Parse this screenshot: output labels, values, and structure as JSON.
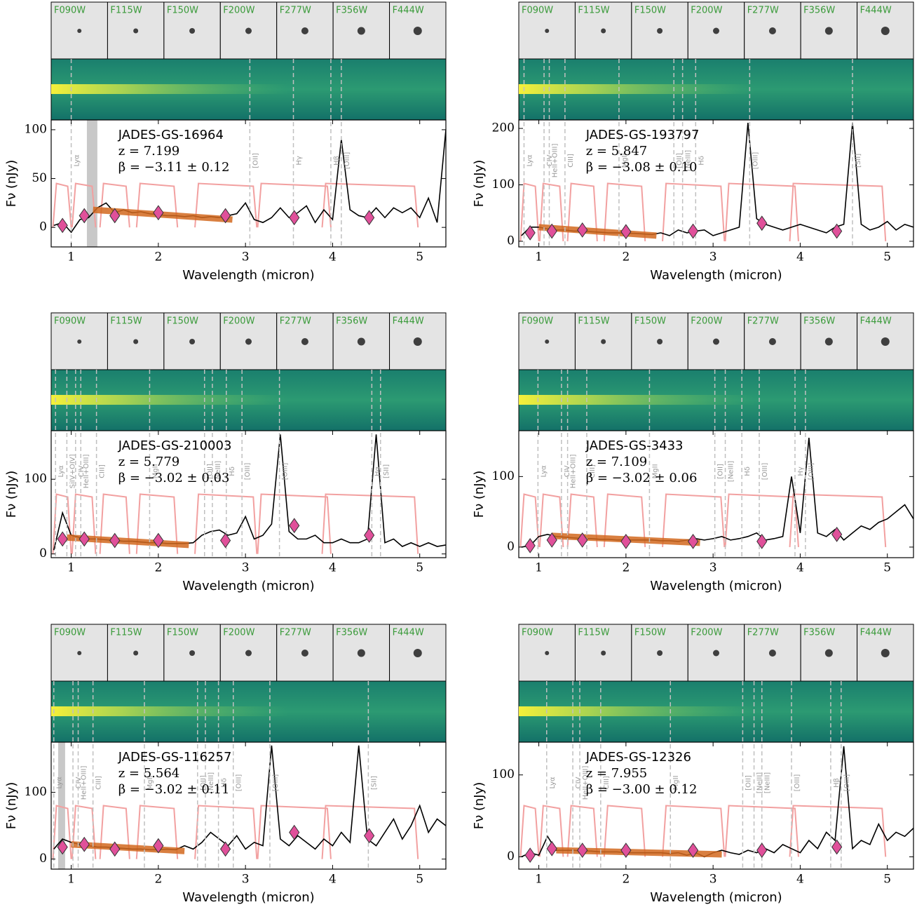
{
  "filters": [
    {
      "name": "F090W",
      "range": [
        0.79,
        1.0
      ]
    },
    {
      "name": "F115W",
      "range": [
        1.01,
        1.28
      ]
    },
    {
      "name": "F150W",
      "range": [
        1.33,
        1.67
      ]
    },
    {
      "name": "F200W",
      "range": [
        1.75,
        2.22
      ]
    },
    {
      "name": "F277W",
      "range": [
        2.42,
        3.13
      ]
    },
    {
      "name": "F356W",
      "range": [
        3.14,
        3.98
      ]
    },
    {
      "name": "F444W",
      "range": [
        3.88,
        4.98
      ]
    }
  ],
  "chart_data": [
    {
      "type": "line",
      "title": "JADES-GS-16964",
      "redshift": "z = 7.199",
      "beta": "β = −3.11 ± 0.12",
      "xlabel": "Wavelength (micron)",
      "ylabel": "Fν (nJy)",
      "color": "#000000",
      "xlim": [
        0.77,
        5.3
      ],
      "ylim": [
        -20,
        110
      ],
      "xticks": [
        1,
        2,
        3,
        4,
        5
      ],
      "yticks": [
        0,
        50,
        100
      ],
      "x": [
        0.8,
        0.9,
        1.0,
        1.1,
        1.2,
        1.3,
        1.4,
        1.5,
        1.6,
        1.7,
        1.8,
        1.9,
        2.0,
        2.1,
        2.2,
        2.3,
        2.4,
        2.5,
        2.6,
        2.7,
        2.8,
        2.9,
        3.0,
        3.1,
        3.2,
        3.3,
        3.4,
        3.5,
        3.6,
        3.7,
        3.8,
        3.9,
        4.0,
        4.1,
        4.2,
        4.3,
        4.4,
        4.5,
        4.6,
        4.7,
        4.8,
        4.9,
        5.0,
        5.1,
        5.2,
        5.3
      ],
      "values": [
        2,
        5,
        -5,
        8,
        10,
        20,
        25,
        15,
        18,
        15,
        16,
        14,
        13,
        12,
        12,
        11,
        12,
        10,
        11,
        10,
        12,
        14,
        25,
        8,
        5,
        10,
        20,
        10,
        15,
        22,
        5,
        18,
        8,
        90,
        18,
        12,
        10,
        20,
        10,
        20,
        15,
        20,
        10,
        30,
        5,
        100
      ],
      "photometry": {
        "color": "#e0509a",
        "x": [
          0.9,
          1.15,
          1.5,
          2.0,
          2.77,
          3.56,
          4.42
        ],
        "values": [
          2,
          12,
          12,
          15,
          12,
          10,
          10
        ]
      },
      "uv_fit": {
        "color": "#d2691e",
        "x": [
          1.25,
          2.85
        ],
        "values": [
          18,
          8
        ]
      },
      "masked": [
        1.18,
        1.3
      ],
      "lines": [
        {
          "label": "Lyα",
          "x": 1.0
        },
        {
          "label": "[OII]",
          "x": 3.05
        },
        {
          "label": "Hγ",
          "x": 3.55
        },
        {
          "label": "Hβ",
          "x": 3.98
        },
        {
          "label": "[OIII]",
          "x": 4.1
        }
      ]
    },
    {
      "type": "line",
      "title": "JADES-GS-193797",
      "redshift": "z = 5.847",
      "beta": "β = −3.08 ± 0.10",
      "xlabel": "Wavelength (micron)",
      "ylabel": "Fν (nJy)",
      "color": "#000000",
      "xlim": [
        0.77,
        5.3
      ],
      "ylim": [
        -10,
        215
      ],
      "xticks": [
        1,
        2,
        3,
        4,
        5
      ],
      "yticks": [
        0,
        100,
        200
      ],
      "x": [
        0.8,
        0.9,
        1.0,
        1.1,
        1.2,
        1.3,
        1.4,
        1.5,
        1.6,
        1.7,
        1.8,
        1.9,
        2.0,
        2.1,
        2.2,
        2.3,
        2.4,
        2.5,
        2.6,
        2.7,
        2.8,
        2.9,
        3.0,
        3.1,
        3.2,
        3.3,
        3.4,
        3.5,
        3.6,
        3.7,
        3.8,
        3.9,
        4.0,
        4.1,
        4.2,
        4.3,
        4.4,
        4.5,
        4.6,
        4.7,
        4.8,
        4.9,
        5.0,
        5.1,
        5.2,
        5.3
      ],
      "values": [
        10,
        25,
        25,
        22,
        20,
        20,
        18,
        18,
        17,
        16,
        15,
        15,
        14,
        14,
        13,
        12,
        15,
        10,
        20,
        15,
        18,
        20,
        10,
        15,
        20,
        25,
        210,
        40,
        30,
        25,
        20,
        25,
        30,
        25,
        20,
        15,
        25,
        30,
        210,
        30,
        20,
        25,
        35,
        20,
        30,
        25
      ],
      "photometry": {
        "color": "#e0509a",
        "x": [
          0.9,
          1.15,
          1.5,
          2.0,
          2.77,
          3.56,
          4.42
        ],
        "values": [
          15,
          18,
          20,
          17,
          18,
          32,
          18
        ]
      },
      "uv_fit": {
        "color": "#d2691e",
        "x": [
          1.0,
          2.35
        ],
        "values": [
          25,
          10
        ]
      },
      "lines": [
        {
          "label": "Lyα",
          "x": 0.83
        },
        {
          "label": "CIV",
          "x": 1.06
        },
        {
          "label": "HeII+OIII]",
          "x": 1.12
        },
        {
          "label": "CIII]",
          "x": 1.3
        },
        {
          "label": "MgII",
          "x": 1.92
        },
        {
          "label": "[OII]",
          "x": 2.55
        },
        {
          "label": "[NeIII]",
          "x": 2.65
        },
        {
          "label": "Hδ",
          "x": 2.8
        },
        {
          "label": "[OIII]",
          "x": 3.42
        },
        {
          "label": "[SII]",
          "x": 4.6
        }
      ]
    },
    {
      "type": "line",
      "title": "JADES-GS-210003",
      "redshift": "z = 5.779",
      "beta": "β = −3.02 ± 0.03",
      "xlabel": "Wavelength (micron)",
      "ylabel": "Fν (nJy)",
      "color": "#000000",
      "xlim": [
        0.77,
        5.3
      ],
      "ylim": [
        -5,
        165
      ],
      "xticks": [
        1,
        2,
        3,
        4,
        5
      ],
      "yticks": [
        0,
        100
      ],
      "x": [
        0.8,
        0.9,
        1.0,
        1.1,
        1.2,
        1.3,
        1.4,
        1.5,
        1.6,
        1.7,
        1.8,
        1.9,
        2.0,
        2.1,
        2.2,
        2.3,
        2.4,
        2.5,
        2.6,
        2.7,
        2.8,
        2.9,
        3.0,
        3.1,
        3.2,
        3.3,
        3.4,
        3.5,
        3.6,
        3.7,
        3.8,
        3.9,
        4.0,
        4.1,
        4.2,
        4.3,
        4.4,
        4.5,
        4.6,
        4.7,
        4.8,
        4.9,
        5.0,
        5.1,
        5.2,
        5.3
      ],
      "values": [
        5,
        55,
        25,
        22,
        20,
        20,
        19,
        18,
        17,
        17,
        16,
        15,
        15,
        14,
        14,
        14,
        15,
        25,
        30,
        32,
        25,
        28,
        50,
        20,
        25,
        40,
        160,
        30,
        20,
        20,
        25,
        15,
        15,
        20,
        15,
        15,
        20,
        160,
        15,
        20,
        10,
        15,
        10,
        15,
        10,
        12
      ],
      "photometry": {
        "color": "#e0509a",
        "x": [
          0.9,
          1.15,
          1.5,
          2.0,
          2.77,
          3.56,
          4.42
        ],
        "values": [
          20,
          20,
          18,
          18,
          18,
          38,
          25
        ]
      },
      "uv_fit": {
        "color": "#d2691e",
        "x": [
          0.95,
          2.35
        ],
        "values": [
          22,
          12
        ]
      },
      "lines": [
        {
          "label": "Lyα",
          "x": 0.82
        },
        {
          "label": "SiIV+OIV]",
          "x": 0.95
        },
        {
          "label": "CIV",
          "x": 1.05
        },
        {
          "label": "HeII+OIII]",
          "x": 1.11
        },
        {
          "label": "CIII]",
          "x": 1.29
        },
        {
          "label": "MgII",
          "x": 1.9
        },
        {
          "label": "[OII]",
          "x": 2.53
        },
        {
          "label": "[NeIII]",
          "x": 2.62
        },
        {
          "label": "Hδ",
          "x": 2.78
        },
        {
          "label": "[OIII]",
          "x": 2.96
        },
        {
          "label": "[OIII]",
          "x": 3.39
        },
        {
          "label": "Hα",
          "x": 4.45
        },
        {
          "label": "[SII]",
          "x": 4.55
        }
      ]
    },
    {
      "type": "line",
      "title": "JADES-GS-3433",
      "redshift": "z = 7.109",
      "beta": "β = −3.02 ± 0.06",
      "xlabel": "Wavelength (micron)",
      "ylabel": "Fν (nJy)",
      "color": "#000000",
      "xlim": [
        0.77,
        5.3
      ],
      "ylim": [
        -15,
        165
      ],
      "xticks": [
        1,
        2,
        3,
        4,
        5
      ],
      "yticks": [
        0,
        100
      ],
      "x": [
        0.8,
        0.9,
        1.0,
        1.1,
        1.2,
        1.3,
        1.4,
        1.5,
        1.6,
        1.7,
        1.8,
        1.9,
        2.0,
        2.1,
        2.2,
        2.3,
        2.4,
        2.5,
        2.6,
        2.7,
        2.8,
        2.9,
        3.0,
        3.1,
        3.2,
        3.3,
        3.4,
        3.5,
        3.6,
        3.7,
        3.8,
        3.9,
        4.0,
        4.1,
        4.2,
        4.3,
        4.4,
        4.5,
        4.6,
        4.7,
        4.8,
        4.9,
        5.0,
        5.1,
        5.2,
        5.3
      ],
      "values": [
        0,
        2,
        15,
        18,
        15,
        14,
        13,
        12,
        12,
        11,
        11,
        10,
        10,
        10,
        10,
        10,
        9,
        9,
        8,
        10,
        12,
        10,
        12,
        15,
        10,
        12,
        15,
        20,
        10,
        12,
        15,
        100,
        20,
        155,
        20,
        15,
        25,
        10,
        20,
        30,
        25,
        35,
        40,
        50,
        60,
        40
      ],
      "photometry": {
        "color": "#e0509a",
        "x": [
          0.9,
          1.15,
          1.5,
          2.0,
          2.77,
          3.56,
          4.42
        ],
        "values": [
          2,
          10,
          10,
          8,
          8,
          8,
          18
        ]
      },
      "uv_fit": {
        "color": "#d2691e",
        "x": [
          1.15,
          2.85
        ],
        "values": [
          16,
          6
        ]
      },
      "lines": [
        {
          "label": "Lyα",
          "x": 0.99
        },
        {
          "label": "CIV",
          "x": 1.26
        },
        {
          "label": "HeII+OIII]",
          "x": 1.33
        },
        {
          "label": "CIII]",
          "x": 1.55
        },
        {
          "label": "MgII",
          "x": 2.27
        },
        {
          "label": "[OII]",
          "x": 3.02
        },
        {
          "label": "[NeIII]",
          "x": 3.14
        },
        {
          "label": "Hδ",
          "x": 3.33
        },
        {
          "label": "[OIII]",
          "x": 3.53
        },
        {
          "label": "Hγ",
          "x": 3.94
        },
        {
          "label": "[OIII]",
          "x": 4.06
        }
      ]
    },
    {
      "type": "line",
      "title": "JADES-GS-116257",
      "redshift": "z = 5.564",
      "beta": "β = −3.02 ± 0.11",
      "xlabel": "Wavelength (micron)",
      "ylabel": "Fν (nJy)",
      "color": "#000000",
      "xlim": [
        0.77,
        5.3
      ],
      "ylim": [
        -15,
        175
      ],
      "xticks": [
        1,
        2,
        3,
        4,
        5
      ],
      "yticks": [
        0,
        100
      ],
      "x": [
        0.8,
        0.9,
        1.0,
        1.1,
        1.2,
        1.3,
        1.4,
        1.5,
        1.6,
        1.7,
        1.8,
        1.9,
        2.0,
        2.1,
        2.2,
        2.3,
        2.4,
        2.5,
        2.6,
        2.7,
        2.8,
        2.9,
        3.0,
        3.1,
        3.2,
        3.3,
        3.4,
        3.5,
        3.6,
        3.7,
        3.8,
        3.9,
        4.0,
        4.1,
        4.2,
        4.3,
        4.4,
        4.5,
        4.6,
        4.7,
        4.8,
        4.9,
        5.0,
        5.1,
        5.2,
        5.3
      ],
      "values": [
        15,
        30,
        25,
        22,
        20,
        18,
        18,
        17,
        16,
        15,
        15,
        14,
        14,
        15,
        14,
        20,
        15,
        25,
        40,
        30,
        20,
        35,
        15,
        25,
        20,
        170,
        30,
        20,
        35,
        25,
        15,
        30,
        20,
        40,
        25,
        170,
        30,
        20,
        40,
        60,
        30,
        50,
        80,
        40,
        60,
        50
      ],
      "photometry": {
        "color": "#e0509a",
        "x": [
          0.9,
          1.15,
          1.5,
          2.0,
          2.77,
          3.56,
          4.42
        ],
        "values": [
          18,
          22,
          15,
          20,
          15,
          40,
          35
        ]
      },
      "uv_fit": {
        "color": "#d2691e",
        "x": [
          1.0,
          2.3
        ],
        "values": [
          22,
          12
        ]
      },
      "masked": [
        0.85,
        0.93
      ],
      "lines": [
        {
          "label": "Lyα",
          "x": 0.8
        },
        {
          "label": "CIV",
          "x": 1.02
        },
        {
          "label": "HeII+OIII]",
          "x": 1.08
        },
        {
          "label": "CIII]",
          "x": 1.25
        },
        {
          "label": "MgII",
          "x": 1.84
        },
        {
          "label": "[OII]",
          "x": 2.45
        },
        {
          "label": "[NeIII]",
          "x": 2.54
        },
        {
          "label": "Hδ",
          "x": 2.69
        },
        {
          "label": "[OIII]",
          "x": 2.86
        },
        {
          "label": "[OIII]",
          "x": 3.28
        },
        {
          "label": "[SII]",
          "x": 4.41
        }
      ]
    },
    {
      "type": "line",
      "title": "JADES-GS-12326",
      "redshift": "z = 7.955",
      "beta": "β = −3.00 ± 0.12",
      "xlabel": "Wavelength (micron)",
      "ylabel": "Fν (nJy)",
      "color": "#000000",
      "xlim": [
        0.77,
        5.3
      ],
      "ylim": [
        -15,
        140
      ],
      "xticks": [
        1,
        2,
        3,
        4,
        5
      ],
      "yticks": [
        0,
        100
      ],
      "x": [
        0.8,
        0.9,
        1.0,
        1.1,
        1.2,
        1.3,
        1.4,
        1.5,
        1.6,
        1.7,
        1.8,
        1.9,
        2.0,
        2.1,
        2.2,
        2.3,
        2.4,
        2.5,
        2.6,
        2.7,
        2.8,
        2.9,
        3.0,
        3.1,
        3.2,
        3.3,
        3.4,
        3.5,
        3.6,
        3.7,
        3.8,
        3.9,
        4.0,
        4.1,
        4.2,
        4.3,
        4.4,
        4.5,
        4.6,
        4.7,
        4.8,
        4.9,
        5.0,
        5.1,
        5.2,
        5.3
      ],
      "values": [
        0,
        5,
        2,
        25,
        8,
        8,
        8,
        7,
        7,
        6,
        6,
        6,
        5,
        5,
        5,
        5,
        5,
        4,
        5,
        2,
        5,
        0,
        5,
        8,
        5,
        3,
        8,
        5,
        10,
        5,
        15,
        10,
        5,
        20,
        10,
        30,
        20,
        135,
        10,
        20,
        15,
        40,
        20,
        30,
        25,
        35
      ],
      "photometry": {
        "color": "#e0509a",
        "x": [
          0.9,
          1.15,
          1.5,
          2.0,
          2.77,
          3.56,
          4.42
        ],
        "values": [
          2,
          10,
          8,
          8,
          8,
          8,
          12
        ]
      },
      "uv_fit": {
        "color": "#d2691e",
        "x": [
          1.2,
          3.1
        ],
        "values": [
          8,
          3
        ]
      },
      "lines": [
        {
          "label": "Lyα",
          "x": 1.09
        },
        {
          "label": "CIV",
          "x": 1.39
        },
        {
          "label": "HeII+OIII]",
          "x": 1.47
        },
        {
          "label": "CIII]",
          "x": 1.71
        },
        {
          "label": "MgII",
          "x": 2.51
        },
        {
          "label": "[OII]",
          "x": 3.34
        },
        {
          "label": "[NeIII]",
          "x": 3.47
        },
        {
          "label": "[NeIII]",
          "x": 3.56
        },
        {
          "label": "[OIII]",
          "x": 3.9
        },
        {
          "label": "Hβ",
          "x": 4.35
        },
        {
          "label": "[OIII]",
          "x": 4.47
        }
      ]
    }
  ]
}
